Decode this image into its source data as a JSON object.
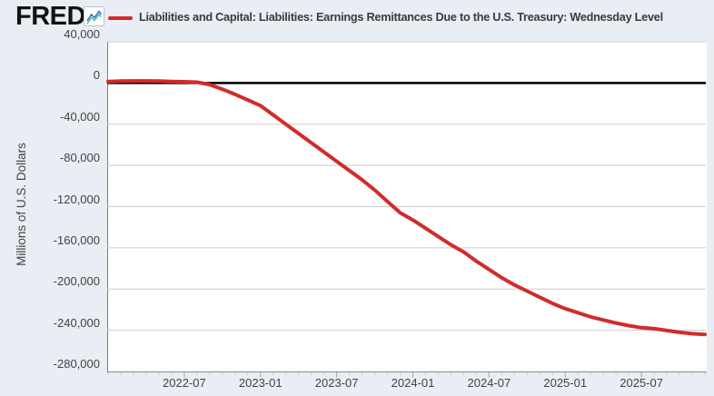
{
  "header": {
    "logo_text": "FRED",
    "logo_registered": "®",
    "logo_chart_icon": "zigzag-line-chart-icon",
    "legend_dash_icon": "red-line-legend-swatch",
    "title": "Liabilities and Capital: Liabilities: Earnings Remittances Due to the U.S. Treasury: Wednesday Level"
  },
  "colors": {
    "background": "#e8eef4",
    "plot_background": "#ffffff",
    "series_line": "#d22b2b",
    "gridline": "#cccccc",
    "zero_line": "#000000",
    "axis_text": "#424242",
    "major_tick": "#8fa9bd",
    "minor_tick": "#bccdda",
    "logo_icon_blue": "#3d6fb5",
    "logo_icon_teal": "#56bda7"
  },
  "chart_data": {
    "type": "line",
    "title": "Liabilities and Capital: Liabilities: Earnings Remittances Due to the U.S. Treasury: Wednesday Level",
    "ylabel": "Millions of U.S. Dollars",
    "xlabel": "",
    "ylim": [
      -280000,
      40000
    ],
    "grid": true,
    "zero_line": true,
    "legend_position": "top",
    "y_ticks": [
      {
        "value": 40000,
        "label": "40,000"
      },
      {
        "value": 0,
        "label": "0"
      },
      {
        "value": -40000,
        "label": "-40,000"
      },
      {
        "value": -80000,
        "label": "-80,000"
      },
      {
        "value": -120000,
        "label": "-120,000"
      },
      {
        "value": -160000,
        "label": "-160,000"
      },
      {
        "value": -200000,
        "label": "-200,000"
      },
      {
        "value": -240000,
        "label": "-240,000"
      },
      {
        "value": -280000,
        "label": "-280,000"
      }
    ],
    "x_ticks": [
      {
        "month_index": 6,
        "label": "2022-07"
      },
      {
        "month_index": 12,
        "label": "2023-01"
      },
      {
        "month_index": 18,
        "label": "2023-07"
      },
      {
        "month_index": 24,
        "label": "2024-01"
      },
      {
        "month_index": 30,
        "label": "2024-07"
      },
      {
        "month_index": 36,
        "label": "2025-01"
      },
      {
        "month_index": 42,
        "label": "2025-07"
      }
    ],
    "x_range": {
      "start": "2022-01",
      "end": "2025-12",
      "total_months": 47
    },
    "series": [
      {
        "name": "Liabilities and Capital: Liabilities: Earnings Remittances Due to the U.S. Treasury: Wednesday Level",
        "units": "Millions of U.S. Dollars",
        "x": [
          "2022-01",
          "2022-02",
          "2022-03",
          "2022-04",
          "2022-05",
          "2022-06",
          "2022-07",
          "2022-08",
          "2022-09",
          "2022-10",
          "2022-11",
          "2022-12",
          "2023-01",
          "2023-02",
          "2023-03",
          "2023-04",
          "2023-05",
          "2023-06",
          "2023-07",
          "2023-08",
          "2023-09",
          "2023-10",
          "2023-11",
          "2023-12",
          "2024-01",
          "2024-02",
          "2024-03",
          "2024-04",
          "2024-05",
          "2024-06",
          "2024-07",
          "2024-08",
          "2024-09",
          "2024-10",
          "2024-11",
          "2024-12",
          "2025-01",
          "2025-02",
          "2025-03",
          "2025-04",
          "2025-05",
          "2025-06",
          "2025-07",
          "2025-08",
          "2025-09",
          "2025-10",
          "2025-11",
          "2025-12"
        ],
        "values": [
          1500,
          1800,
          2000,
          2000,
          1800,
          1500,
          1200,
          800,
          -1500,
          -6000,
          -11000,
          -16500,
          -22000,
          -31000,
          -40000,
          -49000,
          -58000,
          -67000,
          -76000,
          -85000,
          -94000,
          -104000,
          -115000,
          -126000,
          -133000,
          -141000,
          -149000,
          -157000,
          -164000,
          -173000,
          -181000,
          -189000,
          -196000,
          -202000,
          -208000,
          -214000,
          -219000,
          -223000,
          -227000,
          -230000,
          -233000,
          -235500,
          -237500,
          -238500,
          -240200,
          -242000,
          -243300,
          -244000
        ]
      }
    ]
  }
}
